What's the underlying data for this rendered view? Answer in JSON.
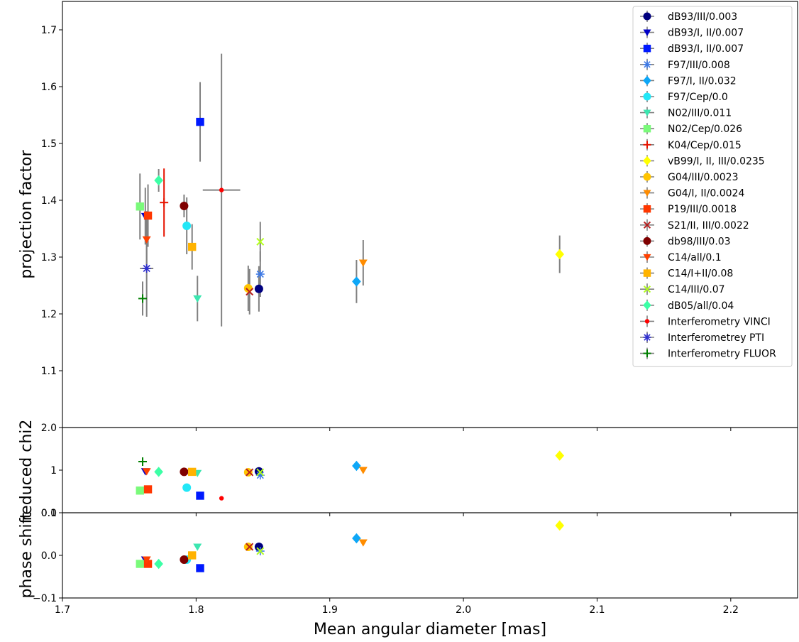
{
  "chart_data": {
    "type": "scatter",
    "xlabel": "Mean angular diameter [mas]",
    "xlim": [
      1.7,
      2.25
    ],
    "xticks": [
      "1.7",
      "1.8",
      "1.9",
      "2.0",
      "2.1",
      "2.2"
    ],
    "xtick_values": [
      1.7,
      1.8,
      1.9,
      2.0,
      2.1,
      2.2
    ],
    "legend_position": "top-right",
    "panels": [
      {
        "id": "top",
        "ylabel": "projection factor",
        "ylim": [
          1.0,
          1.75
        ],
        "yticks": [
          "1.1",
          "1.2",
          "1.3",
          "1.4",
          "1.5",
          "1.6",
          "1.7"
        ],
        "ytick_values": [
          1.1,
          1.2,
          1.3,
          1.4,
          1.5,
          1.6,
          1.7
        ]
      },
      {
        "id": "middle",
        "ylabel": "reduced chi2",
        "ylim": [
          0.0,
          2.0
        ],
        "yticks": [
          "0.0",
          "1",
          "2.0"
        ],
        "ytick_values": [
          0.0,
          1.0,
          2.0
        ]
      },
      {
        "id": "bottom",
        "ylabel": "phase shift",
        "ylim": [
          -0.1,
          0.1
        ],
        "yticks": [
          "−0.1",
          "0.0",
          "0.1"
        ],
        "ytick_values": [
          -0.1,
          0.0,
          0.1
        ]
      }
    ],
    "series": [
      {
        "name": "dB93/III/0.003",
        "color": "#00007f",
        "marker": "circle",
        "x": 1.847,
        "p": 1.244,
        "perr": 0.04,
        "chi": 0.97,
        "phase": 0.02
      },
      {
        "name": "dB93/I, II/0.007",
        "color": "#0000c8",
        "marker": "tri_down",
        "x": 1.762,
        "p": 1.372,
        "perr": 0.05,
        "chi": 0.97,
        "phase": -0.01
      },
      {
        "name": "dB93/I, II/0.007",
        "color": "#0019ff",
        "marker": "square",
        "x": 1.803,
        "p": 1.538,
        "perr": 0.07,
        "chi": 0.4,
        "phase": -0.03
      },
      {
        "name": "F97/III/0.008",
        "color": "#3d79e6",
        "marker": "star",
        "x": 1.848,
        "p": 1.27,
        "perr": 0.04,
        "chi": 0.88,
        "phase": 0.01
      },
      {
        "name": "F97/I, II/0.032",
        "color": "#0ea7f7",
        "marker": "diamond",
        "x": 1.92,
        "p": 1.257,
        "perr": 0.038,
        "chi": 1.1,
        "phase": 0.04
      },
      {
        "name": "F97/Cep/0.0",
        "color": "#22e7f7",
        "marker": "circle",
        "x": 1.793,
        "p": 1.355,
        "perr": 0.05,
        "chi": 0.59,
        "phase": -0.01
      },
      {
        "name": "N02/III/0.011",
        "color": "#3ce6b0",
        "marker": "tri_down",
        "x": 1.801,
        "p": 1.227,
        "perr": 0.04,
        "chi": 0.93,
        "phase": 0.02
      },
      {
        "name": "N02/Cep/0.026",
        "color": "#7afa7a",
        "marker": "square",
        "x": 1.758,
        "p": 1.389,
        "perr": 0.058,
        "chi": 0.52,
        "phase": -0.02
      },
      {
        "name": "K04/Cep/0.015",
        "color": "#e61400",
        "marker": "plus",
        "x": 1.776,
        "p": 1.396,
        "perr": 0.06,
        "chi": null,
        "phase": null
      },
      {
        "name": "vB99/I, II, III/0.0235",
        "color": "#ffff00",
        "marker": "diamond",
        "x": 2.072,
        "p": 1.305,
        "perr": 0.033,
        "chi": 1.34,
        "phase": 0.07
      },
      {
        "name": "G04/III/0.0023",
        "color": "#ffc400",
        "marker": "circle",
        "x": 1.839,
        "p": 1.245,
        "perr": 0.04,
        "chi": 0.95,
        "phase": 0.02
      },
      {
        "name": "G04/I, II/0.0024",
        "color": "#ff8c00",
        "marker": "tri_down",
        "x": 1.925,
        "p": 1.29,
        "perr": 0.04,
        "chi": 1.0,
        "phase": 0.03
      },
      {
        "name": "P19/III/0.0018",
        "color": "#ff3700",
        "marker": "square",
        "x": 1.764,
        "p": 1.373,
        "perr": 0.055,
        "chi": 0.55,
        "phase": -0.02
      },
      {
        "name": "S21/II, III/0.0022",
        "color": "#b71c1c",
        "marker": "xmark",
        "x": 1.84,
        "p": 1.239,
        "perr": 0.04,
        "chi": 0.95,
        "phase": 0.02
      },
      {
        "name": "db98/III/0.03",
        "color": "#7f0000",
        "marker": "circle",
        "x": 1.791,
        "p": 1.39,
        "perr": 0.02,
        "chi": 0.96,
        "phase": -0.01
      },
      {
        "name": "C14/all/0.1",
        "color": "#ff4000",
        "marker": "tri_down",
        "x": 1.763,
        "p": 1.331,
        "perr": 0.05,
        "chi": 0.97,
        "phase": -0.01
      },
      {
        "name": "C14/I+II/0.08",
        "color": "#ffb300",
        "marker": "square",
        "x": 1.797,
        "p": 1.318,
        "perr": 0.04,
        "chi": 0.96,
        "phase": 0.0
      },
      {
        "name": "C14/III/0.07",
        "color": "#b2ff1a",
        "marker": "xmark",
        "x": 1.848,
        "p": 1.327,
        "perr": 0.035,
        "chi": 0.95,
        "phase": 0.01
      },
      {
        "name": "dB05/all/0.04",
        "color": "#3cffa6",
        "marker": "diamond",
        "x": 1.772,
        "p": 1.435,
        "perr": 0.02,
        "chi": 0.96,
        "phase": -0.02
      },
      {
        "name": "Interferometry VINCI",
        "color": "#ff0000",
        "marker": "dot",
        "x": 1.819,
        "p": 1.418,
        "perr": 0.24,
        "xerr": 0.014,
        "chi": 0.34,
        "phase": null
      },
      {
        "name": "Interferometrey PTI",
        "color": "#2f2fd0",
        "marker": "star",
        "x": 1.763,
        "p": 1.28,
        "perr": 0.085,
        "xerr": 0.005,
        "chi": null,
        "phase": null
      },
      {
        "name": "Interferometry FLUOR",
        "color": "#007f00",
        "marker": "plus",
        "x": 1.76,
        "p": 1.227,
        "perr": 0.03,
        "chi": 1.2,
        "phase": null
      }
    ]
  }
}
